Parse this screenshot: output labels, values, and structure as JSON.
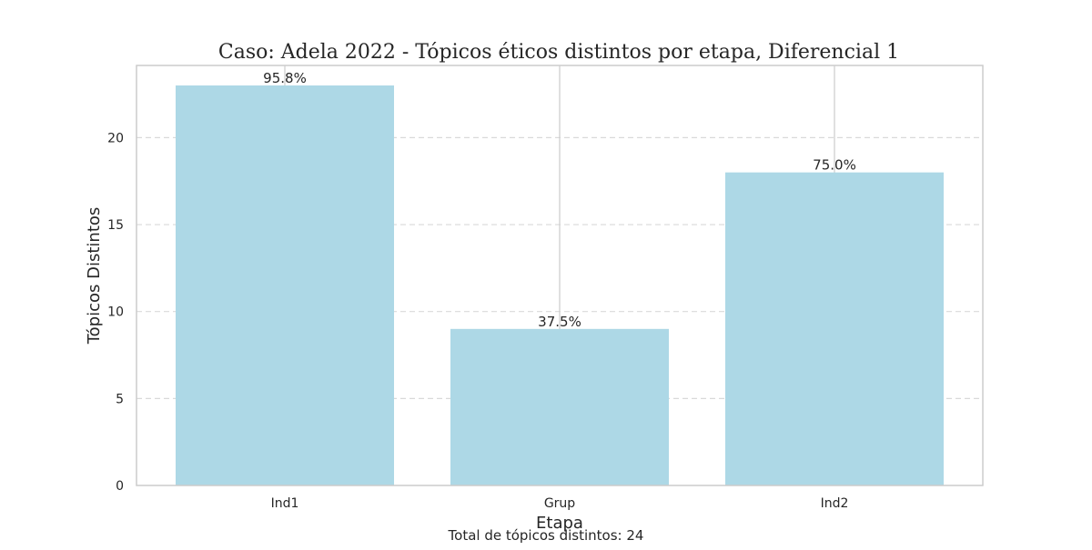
{
  "chart_data": {
    "type": "bar",
    "title": "Caso: Adela 2022 - Tópicos éticos distintos por etapa, Diferencial 1",
    "xlabel": "Etapa",
    "ylabel": "Tópicos Distintos",
    "categories": [
      "Ind1",
      "Grup",
      "Ind2"
    ],
    "values": [
      23,
      9,
      18
    ],
    "data_labels": [
      "95.8%",
      "37.5%",
      "75.0%"
    ],
    "ylim": [
      0,
      24.15
    ],
    "yticks": [
      0,
      5,
      10,
      15,
      20
    ],
    "grid": {
      "y": "dashed",
      "x": "solid"
    },
    "footer_note": "Total de tópicos distintos: 24",
    "bar_color": "#add8e6",
    "grid_color": "#d9d9d9",
    "spine_color": "#cccccc",
    "text_color": "#262626"
  }
}
